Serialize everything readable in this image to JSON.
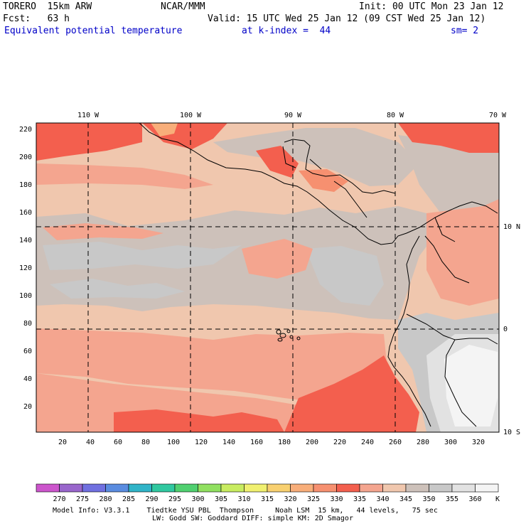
{
  "header": {
    "model": "TORERO  15km ARW",
    "center": "NCAR/MMM",
    "init": "Init: 00 UTC Mon 23 Jan 12",
    "fcst": "Fcst:   63 h",
    "valid": "Valid: 15 UTC Wed 25 Jan 12 (09 CST Wed 25 Jan 12)",
    "field": "Equivalent potential temperature",
    "level": "at k-index =  44",
    "smooth": "sm= 2"
  },
  "map": {
    "lon_labels": [
      "110 W",
      "100 W",
      "90 W",
      "80 W",
      "70 W"
    ],
    "lat_labels": [
      "10 N",
      "0",
      "10 S"
    ],
    "y_ticks": [
      "220",
      "200",
      "180",
      "160",
      "140",
      "120",
      "100",
      "80",
      "60",
      "40",
      "20"
    ],
    "x_ticks": [
      "20",
      "40",
      "60",
      "80",
      "100",
      "120",
      "140",
      "160",
      "180",
      "200",
      "220",
      "240",
      "260",
      "280",
      "300",
      "320"
    ],
    "colors": {
      "c320": "#f8ae7a",
      "c325": "#f69070",
      "c330": "#f35f4e",
      "c335": "#f4a58f",
      "c340": "#f0c7ae",
      "c345": "#cdc1ba",
      "c350": "#c8c8c8",
      "c355": "#e2e2e2",
      "c360": "#f4f4f4",
      "coast": "#000000",
      "grid": "#000000"
    }
  },
  "colorbar": {
    "labels": [
      "270",
      "275",
      "280",
      "285",
      "290",
      "295",
      "300",
      "305",
      "310",
      "315",
      "320",
      "325",
      "330",
      "335",
      "340",
      "345",
      "350",
      "355",
      "360"
    ],
    "unit": "K",
    "colors": [
      "#cc55cc",
      "#9966cc",
      "#7070e0",
      "#5a8ce0",
      "#30b4c8",
      "#30c8a0",
      "#50d070",
      "#90e060",
      "#c8ec60",
      "#f0f070",
      "#f8d070",
      "#f8ae7a",
      "#f69070",
      "#f35f4e",
      "#f4a58f",
      "#f0c7ae",
      "#cdc1ba",
      "#c8c8c8",
      "#e2e2e2",
      "#f4f4f4"
    ]
  },
  "footer": {
    "line1": "Model Info: V3.3.1    Tiedtke YSU PBL  Thompson     Noah LSM  15 km,   44 levels,   75 sec",
    "line2": "LW: Godd SW: Goddard DIFF: simple KM: 2D Smagor"
  }
}
